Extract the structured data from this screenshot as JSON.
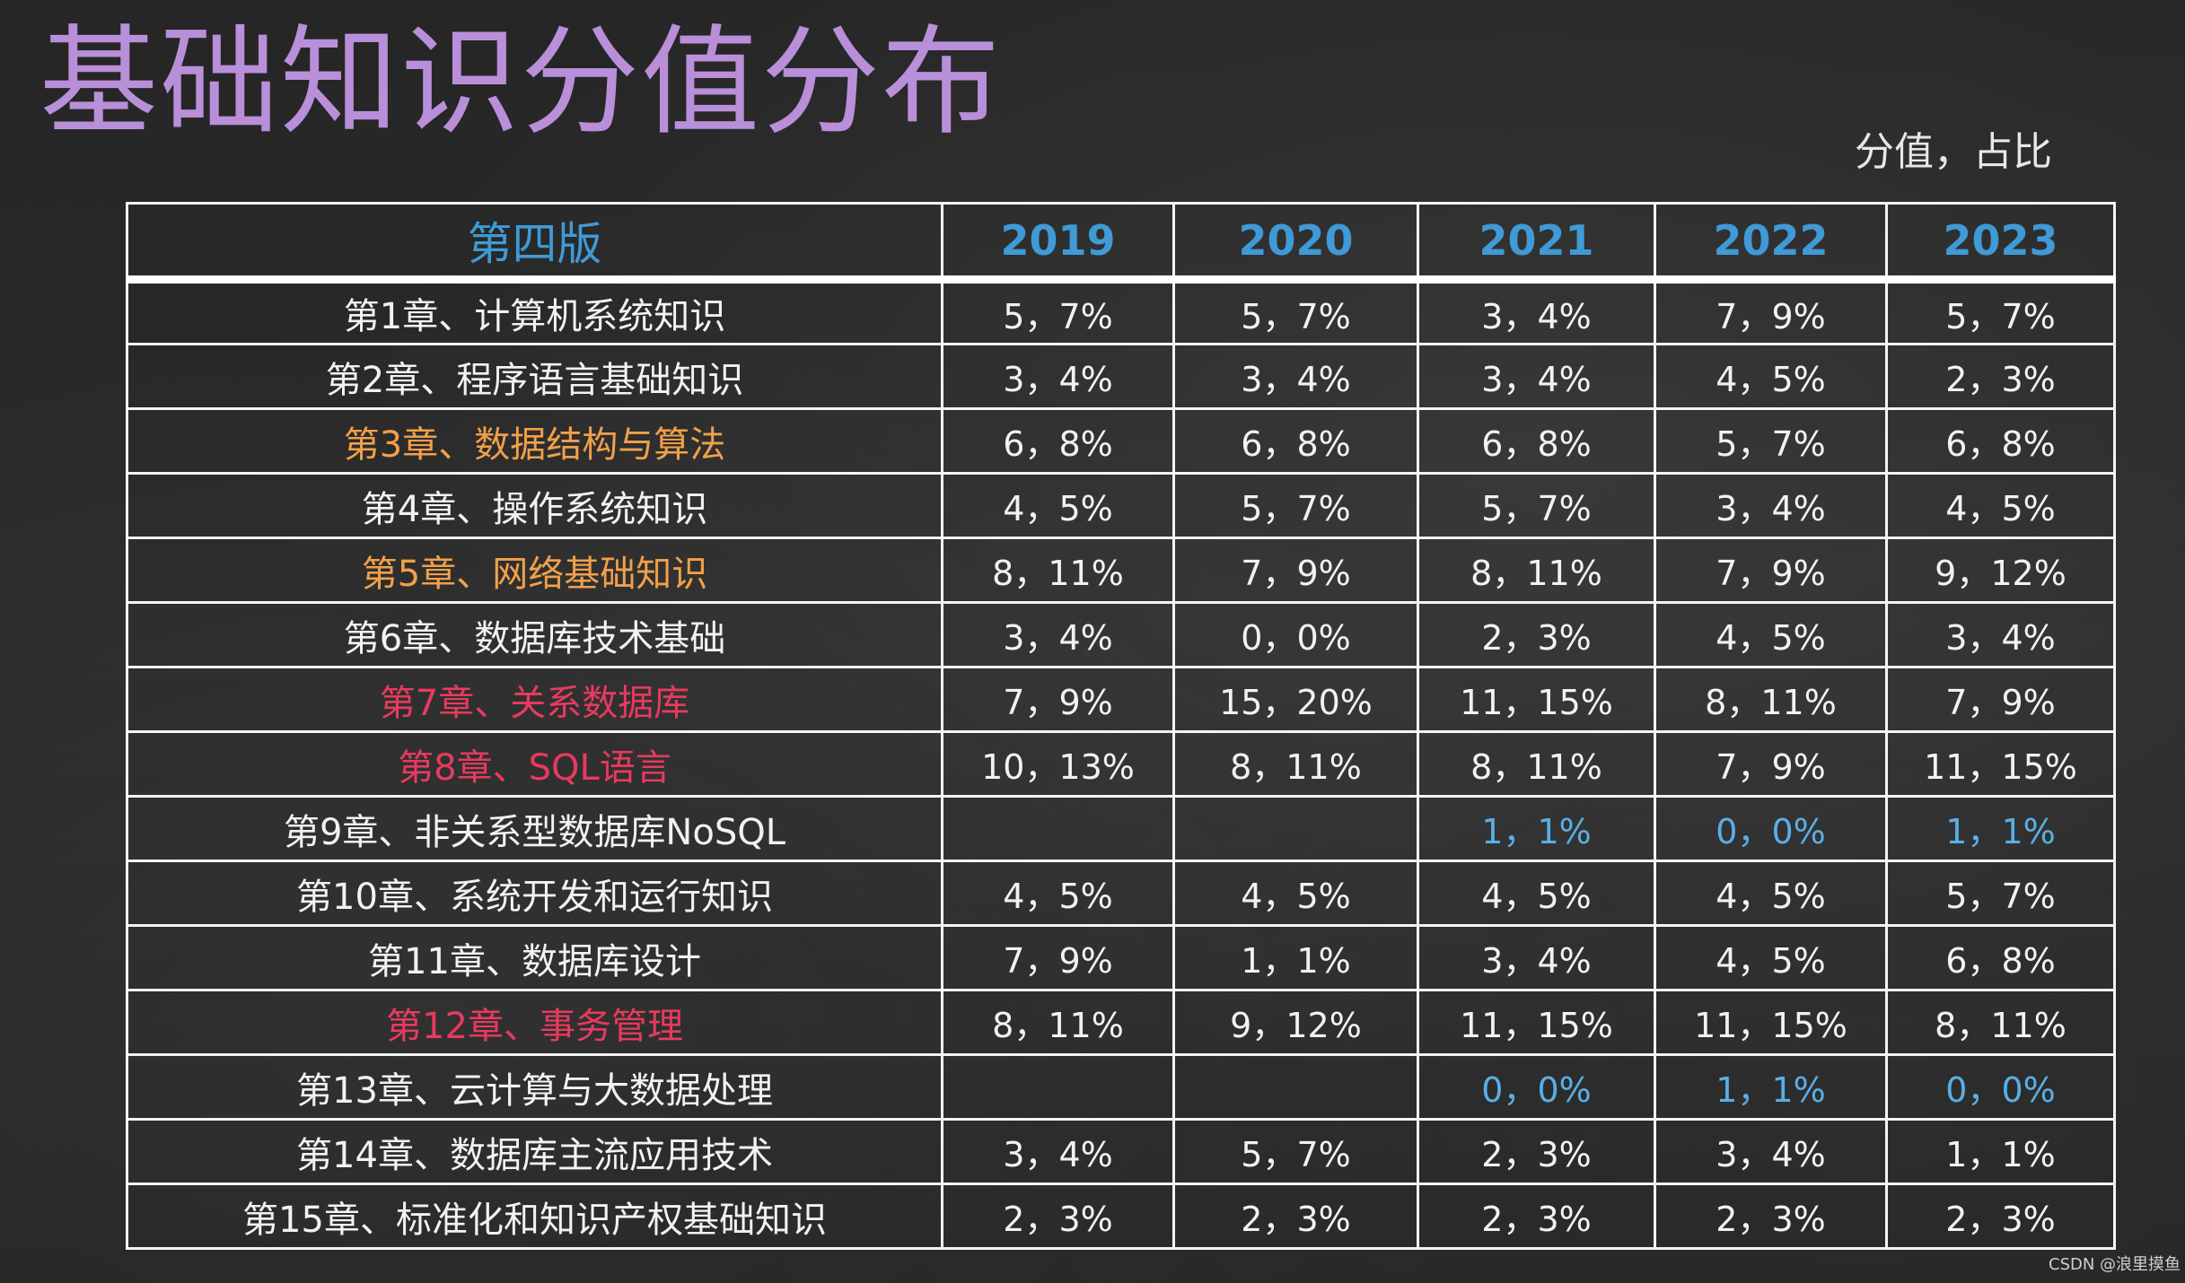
{
  "title": "基础知识分值分布",
  "unit_note": "分值，占比",
  "table": {
    "headers": [
      "第四版",
      "2019",
      "2020",
      "2021",
      "2022",
      "2023"
    ],
    "rows": [
      {
        "chapter": "第1章、计算机系统知识",
        "chapter_color": "white",
        "values": [
          "5，7%",
          "5，7%",
          "3，4%",
          "7，9%",
          "5，7%"
        ]
      },
      {
        "chapter": "第2章、程序语言基础知识",
        "chapter_color": "white",
        "values": [
          "3，4%",
          "3，4%",
          "3，4%",
          "4，5%",
          "2，3%"
        ]
      },
      {
        "chapter": "第3章、数据结构与算法",
        "chapter_color": "orange",
        "values": [
          "6，8%",
          "6，8%",
          "6，8%",
          "5，7%",
          "6，8%"
        ]
      },
      {
        "chapter": "第4章、操作系统知识",
        "chapter_color": "white",
        "values": [
          "4，5%",
          "5，7%",
          "5，7%",
          "3，4%",
          "4，5%"
        ]
      },
      {
        "chapter": "第5章、网络基础知识",
        "chapter_color": "orange",
        "values": [
          "8，11%",
          "7，9%",
          "8，11%",
          "7，9%",
          "9，12%"
        ]
      },
      {
        "chapter": "第6章、数据库技术基础",
        "chapter_color": "white",
        "values": [
          "3，4%",
          "0，0%",
          "2，3%",
          "4，5%",
          "3，4%"
        ]
      },
      {
        "chapter": "第7章、关系数据库",
        "chapter_color": "red",
        "values": [
          "7，9%",
          "15，20%",
          "11，15%",
          "8，11%",
          "7，9%"
        ]
      },
      {
        "chapter": "第8章、SQL语言",
        "chapter_color": "red",
        "values": [
          "10，13%",
          "8，11%",
          "8，11%",
          "7，9%",
          "11，15%"
        ]
      },
      {
        "chapter": "第9章、非关系型数据库NoSQL",
        "chapter_color": "white",
        "values": [
          "",
          "",
          "1，1%",
          "0，0%",
          "1，1%"
        ]
      },
      {
        "chapter": "第10章、系统开发和运行知识",
        "chapter_color": "white",
        "values": [
          "4，5%",
          "4，5%",
          "4，5%",
          "4，5%",
          "5，7%"
        ]
      },
      {
        "chapter": "第11章、数据库设计",
        "chapter_color": "white",
        "values": [
          "7，9%",
          "1，1%",
          "3，4%",
          "4，5%",
          "6，8%"
        ]
      },
      {
        "chapter": "第12章、事务管理",
        "chapter_color": "red",
        "values": [
          "8，11%",
          "9，12%",
          "11，15%",
          "11，15%",
          "8，11%"
        ]
      },
      {
        "chapter": "第13章、云计算与大数据处理",
        "chapter_color": "white",
        "values": [
          "",
          "",
          "0，0%",
          "1，1%",
          "0，0%"
        ]
      },
      {
        "chapter": "第14章、数据库主流应用技术",
        "chapter_color": "white",
        "values": [
          "3，4%",
          "5，7%",
          "2，3%",
          "3，4%",
          "1，1%"
        ]
      },
      {
        "chapter": "第15章、标准化和知识产权基础知识",
        "chapter_color": "white",
        "values": [
          "2，3%",
          "2，3%",
          "2，3%",
          "2，3%",
          "2，3%"
        ]
      }
    ]
  },
  "colors": {
    "title": "#b98fd9",
    "header": "#3f9ad6",
    "orange": "#f1a04a",
    "red": "#e83a5e",
    "blue_values": "#5aaee6"
  },
  "watermark": "CSDN @浪里摸鱼"
}
